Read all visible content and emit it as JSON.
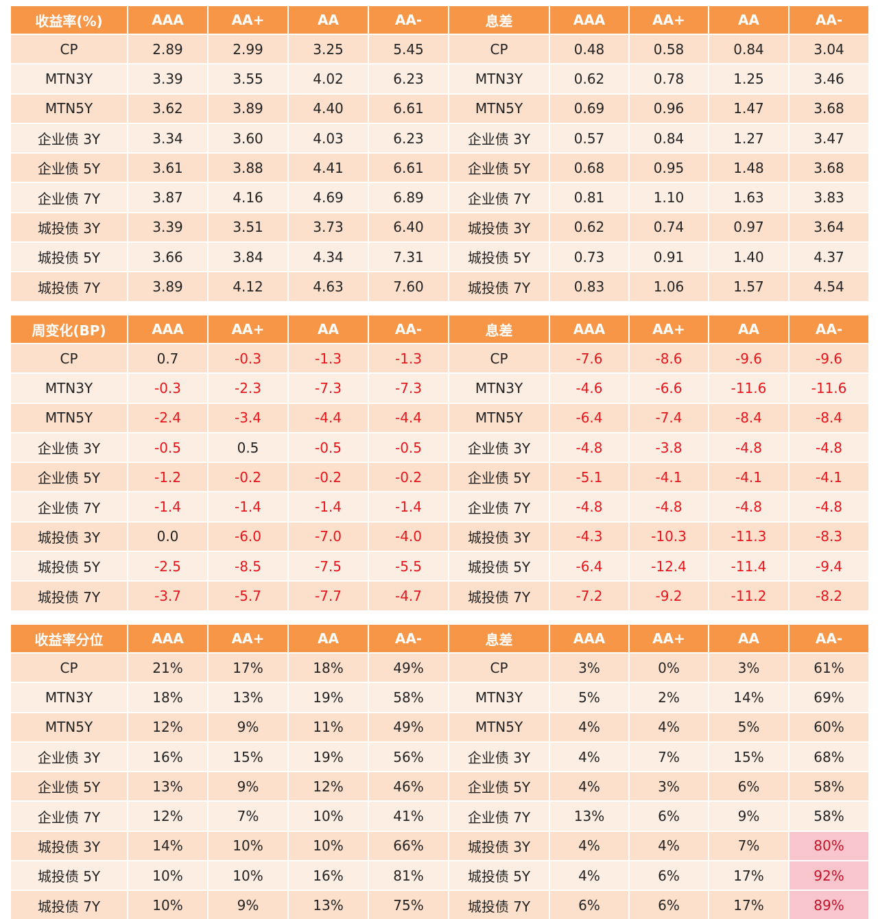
{
  "tables": [
    {
      "header": [
        "收益率(%)",
        "AAA",
        "AA+",
        "AA",
        "AA-",
        "息差",
        "AAA",
        "AA+",
        "AA",
        "AA-"
      ],
      "rows": [
        [
          "CP",
          "2.89",
          "2.99",
          "3.25",
          "5.45",
          "CP",
          "0.48",
          "0.58",
          "0.84",
          "3.04"
        ],
        [
          "MTN3Y",
          "3.39",
          "3.55",
          "4.02",
          "6.23",
          "MTN3Y",
          "0.62",
          "0.78",
          "1.25",
          "3.46"
        ],
        [
          "MTN5Y",
          "3.62",
          "3.89",
          "4.40",
          "6.61",
          "MTN5Y",
          "0.69",
          "0.96",
          "1.47",
          "3.68"
        ],
        [
          "企业债 3Y",
          "3.34",
          "3.60",
          "4.03",
          "6.23",
          "企业债 3Y",
          "0.57",
          "0.84",
          "1.27",
          "3.47"
        ],
        [
          "企业债 5Y",
          "3.61",
          "3.88",
          "4.41",
          "6.61",
          "企业债 5Y",
          "0.68",
          "0.95",
          "1.48",
          "3.68"
        ],
        [
          "企业债 7Y",
          "3.87",
          "4.16",
          "4.69",
          "6.89",
          "企业债 7Y",
          "0.81",
          "1.10",
          "1.63",
          "3.83"
        ],
        [
          "城投债 3Y",
          "3.39",
          "3.51",
          "3.73",
          "6.40",
          "城投债 3Y",
          "0.62",
          "0.74",
          "0.97",
          "3.64"
        ],
        [
          "城投债 5Y",
          "3.66",
          "3.84",
          "4.34",
          "7.31",
          "城投债 5Y",
          "0.73",
          "0.91",
          "1.40",
          "4.37"
        ],
        [
          "城投债 7Y",
          "3.89",
          "4.12",
          "4.63",
          "7.60",
          "城投债 7Y",
          "0.83",
          "1.06",
          "1.57",
          "4.54"
        ]
      ]
    },
    {
      "header": [
        "周变化(BP)",
        "AAA",
        "AA+",
        "AA",
        "AA-",
        "息差",
        "AAA",
        "AA+",
        "AA",
        "AA-"
      ],
      "rows": [
        [
          "CP",
          "0.7",
          "-0.3",
          "-1.3",
          "-1.3",
          "CP",
          "-7.6",
          "-8.6",
          "-9.6",
          "-9.6"
        ],
        [
          "MTN3Y",
          "-0.3",
          "-2.3",
          "-7.3",
          "-7.3",
          "MTN3Y",
          "-4.6",
          "-6.6",
          "-11.6",
          "-11.6"
        ],
        [
          "MTN5Y",
          "-2.4",
          "-3.4",
          "-4.4",
          "-4.4",
          "MTN5Y",
          "-6.4",
          "-7.4",
          "-8.4",
          "-8.4"
        ],
        [
          "企业债 3Y",
          "-0.5",
          "0.5",
          "-0.5",
          "-0.5",
          "企业债 3Y",
          "-4.8",
          "-3.8",
          "-4.8",
          "-4.8"
        ],
        [
          "企业债 5Y",
          "-1.2",
          "-0.2",
          "-0.2",
          "-0.2",
          "企业债 5Y",
          "-5.1",
          "-4.1",
          "-4.1",
          "-4.1"
        ],
        [
          "企业债 7Y",
          "-1.4",
          "-1.4",
          "-1.4",
          "-1.4",
          "企业债 7Y",
          "-4.8",
          "-4.8",
          "-4.8",
          "-4.8"
        ],
        [
          "城投债 3Y",
          "0.0",
          "-6.0",
          "-7.0",
          "-4.0",
          "城投债 3Y",
          "-4.3",
          "-10.3",
          "-11.3",
          "-8.3"
        ],
        [
          "城投债 5Y",
          "-2.5",
          "-8.5",
          "-7.5",
          "-5.5",
          "城投债 5Y",
          "-6.4",
          "-12.4",
          "-11.4",
          "-9.4"
        ],
        [
          "城投债 7Y",
          "-3.7",
          "-5.7",
          "-7.7",
          "-4.7",
          "城投债 7Y",
          "-7.2",
          "-9.2",
          "-11.2",
          "-8.2"
        ]
      ]
    },
    {
      "header": [
        "收益率分位",
        "AAA",
        "AA+",
        "AA",
        "AA-",
        "息差",
        "AAA",
        "AA+",
        "AA",
        "AA-"
      ],
      "rows": [
        [
          "CP",
          "21%",
          "17%",
          "18%",
          "49%",
          "CP",
          "3%",
          "0%",
          "3%",
          "61%"
        ],
        [
          "MTN3Y",
          "18%",
          "13%",
          "19%",
          "58%",
          "MTN3Y",
          "5%",
          "2%",
          "14%",
          "69%"
        ],
        [
          "MTN5Y",
          "12%",
          "9%",
          "11%",
          "49%",
          "MTN5Y",
          "4%",
          "4%",
          "5%",
          "60%"
        ],
        [
          "企业债 3Y",
          "16%",
          "15%",
          "19%",
          "56%",
          "企业债 3Y",
          "4%",
          "7%",
          "15%",
          "68%"
        ],
        [
          "企业债 5Y",
          "13%",
          "9%",
          "12%",
          "46%",
          "企业债 5Y",
          "4%",
          "3%",
          "6%",
          "58%"
        ],
        [
          "企业债 7Y",
          "12%",
          "7%",
          "10%",
          "41%",
          "企业债 7Y",
          "13%",
          "6%",
          "9%",
          "58%"
        ],
        [
          "城投债 3Y",
          "14%",
          "10%",
          "10%",
          "66%",
          "城投债 3Y",
          "4%",
          "4%",
          "7%",
          "80%"
        ],
        [
          "城投债 5Y",
          "10%",
          "10%",
          "16%",
          "81%",
          "城投债 5Y",
          "4%",
          "6%",
          "17%",
          "92%"
        ],
        [
          "城投债 7Y",
          "10%",
          "9%",
          "13%",
          "75%",
          "城投债 7Y",
          "6%",
          "6%",
          "17%",
          "89%"
        ]
      ]
    }
  ]
}
